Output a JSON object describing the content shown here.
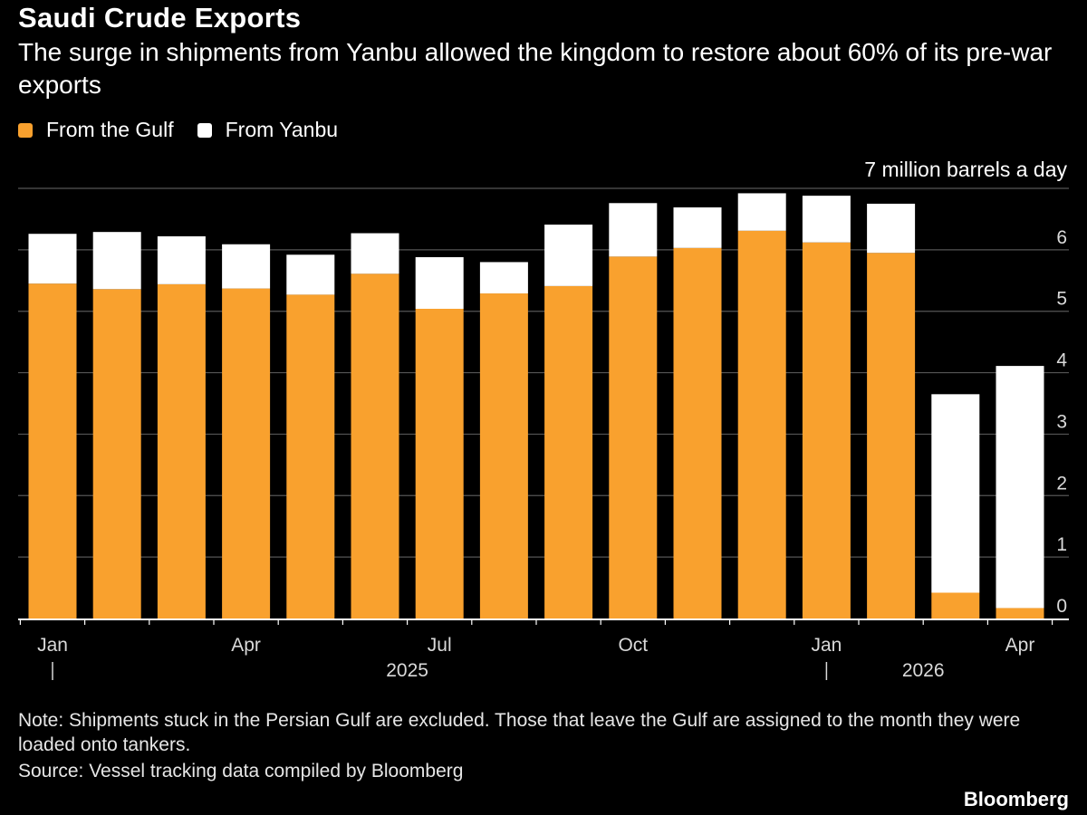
{
  "header": {
    "title": "Saudi Crude Exports",
    "subtitle": "The surge in shipments from Yanbu allowed the kingdom to restore about 60% of its pre-war exports"
  },
  "footer": {
    "note": "Note: Shipments stuck in the Persian Gulf are excluded. Those that leave the Gulf are assigned to the month they were loaded onto tankers.",
    "source": "Source: Vessel tracking data compiled by Bloomberg",
    "brand": "Bloomberg"
  },
  "colors": {
    "gulf": "#f9a12e",
    "yanbu": "#ffffff",
    "background": "#000000",
    "grid": "#555555"
  },
  "chart_data": {
    "type": "bar",
    "stacked": true,
    "unit_label": "7 million barrels a day",
    "ylim": [
      0,
      7
    ],
    "yticks": [
      {
        "value": 0,
        "label": "0"
      },
      {
        "value": 1,
        "label": "1"
      },
      {
        "value": 2,
        "label": "2"
      },
      {
        "value": 3,
        "label": "3"
      },
      {
        "value": 4,
        "label": "4"
      },
      {
        "value": 5,
        "label": "5"
      },
      {
        "value": 6,
        "label": "6"
      },
      {
        "value": 7,
        "label": ""
      }
    ],
    "categories": [
      "2025-01",
      "2025-02",
      "2025-03",
      "2025-04",
      "2025-05",
      "2025-06",
      "2025-07",
      "2025-08",
      "2025-09",
      "2025-10",
      "2025-11",
      "2025-12",
      "2026-01",
      "2026-02",
      "2026-03",
      "2026-04"
    ],
    "x_tick_labels": [
      {
        "index": 0,
        "label": "Jan"
      },
      {
        "index": 3,
        "label": "Apr"
      },
      {
        "index": 6,
        "label": "Jul"
      },
      {
        "index": 9,
        "label": "Oct"
      },
      {
        "index": 12,
        "label": "Jan"
      },
      {
        "index": 15,
        "label": "Apr"
      }
    ],
    "year_labels": [
      {
        "label": "2025",
        "start_index": 0
      },
      {
        "label": "2026",
        "start_index": 12
      }
    ],
    "legend": "top-left",
    "grid": true,
    "series": [
      {
        "name": "From the Gulf",
        "color": "#f9a12e",
        "values": [
          5.45,
          5.36,
          5.44,
          5.37,
          5.27,
          5.61,
          5.04,
          5.29,
          5.41,
          5.89,
          6.03,
          6.31,
          6.12,
          5.95,
          0.42,
          0.17
        ]
      },
      {
        "name": "From Yanbu",
        "color": "#ffffff",
        "values": [
          0.81,
          0.93,
          0.78,
          0.72,
          0.65,
          0.66,
          0.84,
          0.51,
          1.0,
          0.87,
          0.66,
          0.61,
          0.76,
          0.8,
          3.23,
          3.94
        ]
      }
    ]
  }
}
